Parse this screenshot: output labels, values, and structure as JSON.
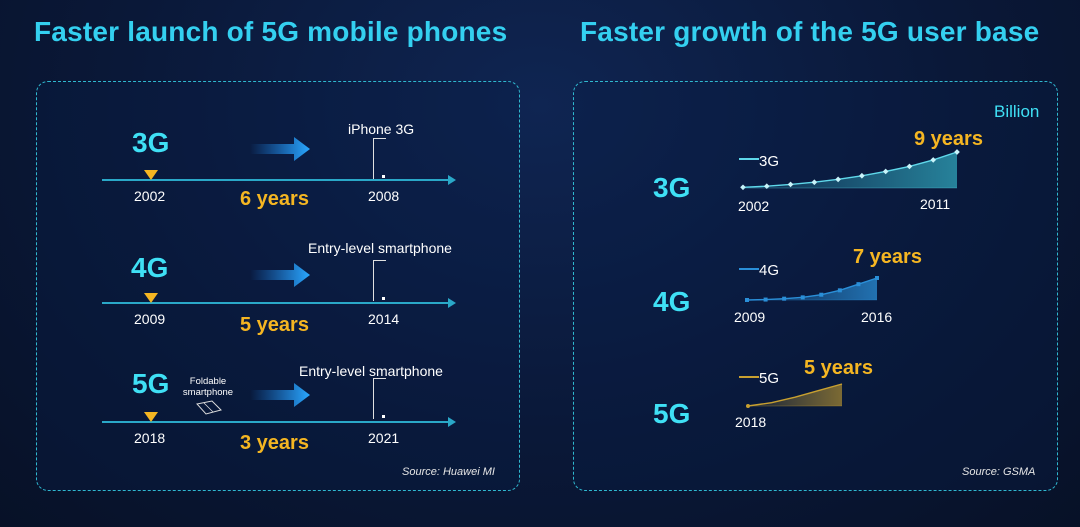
{
  "left": {
    "title": "Faster launch of 5G mobile phones",
    "source": "Source: Huawei MI",
    "rows": [
      {
        "gen": "3G",
        "start_year": "2002",
        "end_year": "2008",
        "duration": "6 years",
        "phone_label": "iPhone 3G"
      },
      {
        "gen": "4G",
        "start_year": "2009",
        "end_year": "2014",
        "duration": "5 years",
        "phone_label": "Entry-level smartphone"
      },
      {
        "gen": "5G",
        "start_year": "2018",
        "end_year": "2021",
        "duration": "3 years",
        "phone_label": "Entry-level smartphone",
        "extra_label": "Foldable smartphone"
      }
    ]
  },
  "right": {
    "title": "Faster growth of the 5G user base",
    "source": "Source: GSMA",
    "unit": "Billion",
    "rows": [
      {
        "gen": "3G",
        "legend": "3G",
        "start_year": "2002",
        "end_year": "2011",
        "duration": "9 years"
      },
      {
        "gen": "4G",
        "legend": "4G",
        "start_year": "2009",
        "end_year": "2016",
        "duration": "7 years"
      },
      {
        "gen": "5G",
        "legend": "5G",
        "start_year": "2018",
        "end_year": "",
        "duration": "5 years"
      }
    ]
  },
  "chart_data": [
    {
      "type": "timeline",
      "title": "Faster launch of 5G mobile phones",
      "series": [
        {
          "name": "3G",
          "network_launch": 2002,
          "phone_launch": 2008,
          "gap_years": 6
        },
        {
          "name": "4G",
          "network_launch": 2009,
          "phone_launch": 2014,
          "gap_years": 5
        },
        {
          "name": "5G",
          "network_launch": 2018,
          "phone_launch": 2021,
          "gap_years": 3
        }
      ]
    },
    {
      "type": "line",
      "title": "Faster growth of the 5G user base",
      "ylabel": "Billion",
      "series": [
        {
          "name": "3G",
          "start": 2002,
          "end": 2011,
          "years": 9,
          "values": [
            0.02,
            0.05,
            0.1,
            0.16,
            0.24,
            0.34,
            0.46,
            0.6,
            0.78,
            1.0
          ]
        },
        {
          "name": "4G",
          "start": 2009,
          "end": 2016,
          "years": 7,
          "values": [
            0.0,
            0.02,
            0.06,
            0.12,
            0.24,
            0.44,
            0.72,
            1.0
          ]
        },
        {
          "name": "5G",
          "start": 2018,
          "end": null,
          "years": 5,
          "values": [
            0.0,
            0.15,
            0.4,
            0.7,
            1.0
          ]
        }
      ],
      "colors": {
        "3G": "#5fd8ea",
        "4G": "#2a8fd8",
        "5G": "#c8a030"
      }
    }
  ]
}
